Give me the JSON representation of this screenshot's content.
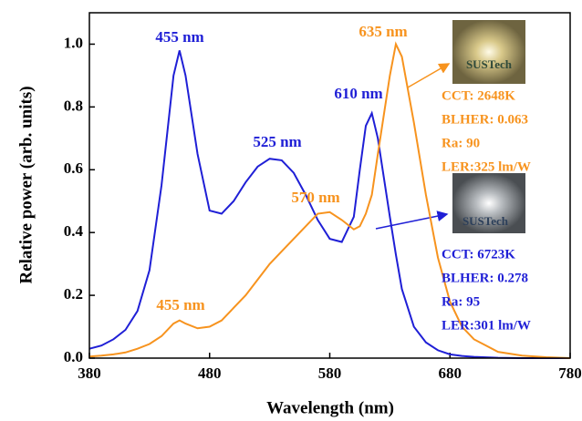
{
  "chart_data": {
    "type": "line",
    "x_label": "Wavelength (nm)",
    "y_label": "Relative power (arb. units)",
    "x": [
      380,
      390,
      400,
      410,
      420,
      430,
      440,
      450,
      455,
      460,
      470,
      480,
      490,
      500,
      510,
      520,
      530,
      540,
      550,
      560,
      570,
      580,
      590,
      600,
      605,
      610,
      615,
      620,
      630,
      635,
      640,
      650,
      660,
      670,
      680,
      690,
      700,
      720,
      740,
      760,
      780
    ],
    "series": [
      {
        "color": "#1f1fd6",
        "values": [
          0.03,
          0.04,
          0.06,
          0.09,
          0.15,
          0.28,
          0.55,
          0.9,
          0.98,
          0.9,
          0.65,
          0.47,
          0.46,
          0.5,
          0.56,
          0.61,
          0.635,
          0.63,
          0.59,
          0.52,
          0.44,
          0.38,
          0.37,
          0.45,
          0.6,
          0.74,
          0.78,
          0.7,
          0.45,
          0.33,
          0.22,
          0.1,
          0.05,
          0.025,
          0.012,
          0.007,
          0.004,
          0.001,
          0,
          0,
          0
        ]
      },
      {
        "color": "#f7931e",
        "values": [
          0.005,
          0.008,
          0.012,
          0.018,
          0.03,
          0.045,
          0.07,
          0.11,
          0.12,
          0.11,
          0.095,
          0.1,
          0.12,
          0.16,
          0.2,
          0.25,
          0.3,
          0.34,
          0.38,
          0.42,
          0.46,
          0.465,
          0.44,
          0.41,
          0.42,
          0.46,
          0.52,
          0.65,
          0.9,
          1.0,
          0.96,
          0.75,
          0.52,
          0.32,
          0.18,
          0.1,
          0.06,
          0.02,
          0.008,
          0.003,
          0
        ]
      }
    ],
    "xlim": [
      380,
      780
    ],
    "xticks": [
      380,
      480,
      580,
      680,
      780
    ],
    "ylim": [
      0,
      1.1
    ],
    "yticks": [
      {
        "value": 0,
        "label": "0.0"
      },
      0.2,
      0.4,
      0.6,
      0.8,
      {
        "value": 1,
        "label": "1.0"
      }
    ],
    "annotations": [
      {
        "text": "455 nm",
        "color": "#1f1fd6"
      },
      {
        "text": "635 nm",
        "color": "#f7931e"
      },
      {
        "text": "610 nm",
        "color": "#1f1fd6"
      },
      {
        "text": "525 nm",
        "color": "#1f1fd6"
      },
      {
        "text": "570 nm",
        "color": "#f7931e"
      },
      {
        "text": "455 nm",
        "color": "#f7931e"
      },
      {
        "text": "CCT: 2648K",
        "color": "#f7931e"
      },
      {
        "text": "BLHER: 0.063",
        "color": "#f7931e"
      },
      {
        "text": "Ra: 90",
        "color": "#f7931e"
      },
      {
        "text": "LER:325 lm/W",
        "color": "#f7931e"
      },
      {
        "text": "CCT: 6723K",
        "color": "#1f1fd6"
      },
      {
        "text": "BLHER: 0.278",
        "color": "#1f1fd6"
      },
      {
        "text": "Ra: 95",
        "color": "#1f1fd6"
      },
      {
        "text": "LER:301 lm/W",
        "color": "#1f1fd6"
      },
      {
        "text": "SUSTech",
        "color": "#2f4a3a"
      },
      {
        "text": "SUSTech",
        "color": "#2c3f5a"
      }
    ]
  }
}
